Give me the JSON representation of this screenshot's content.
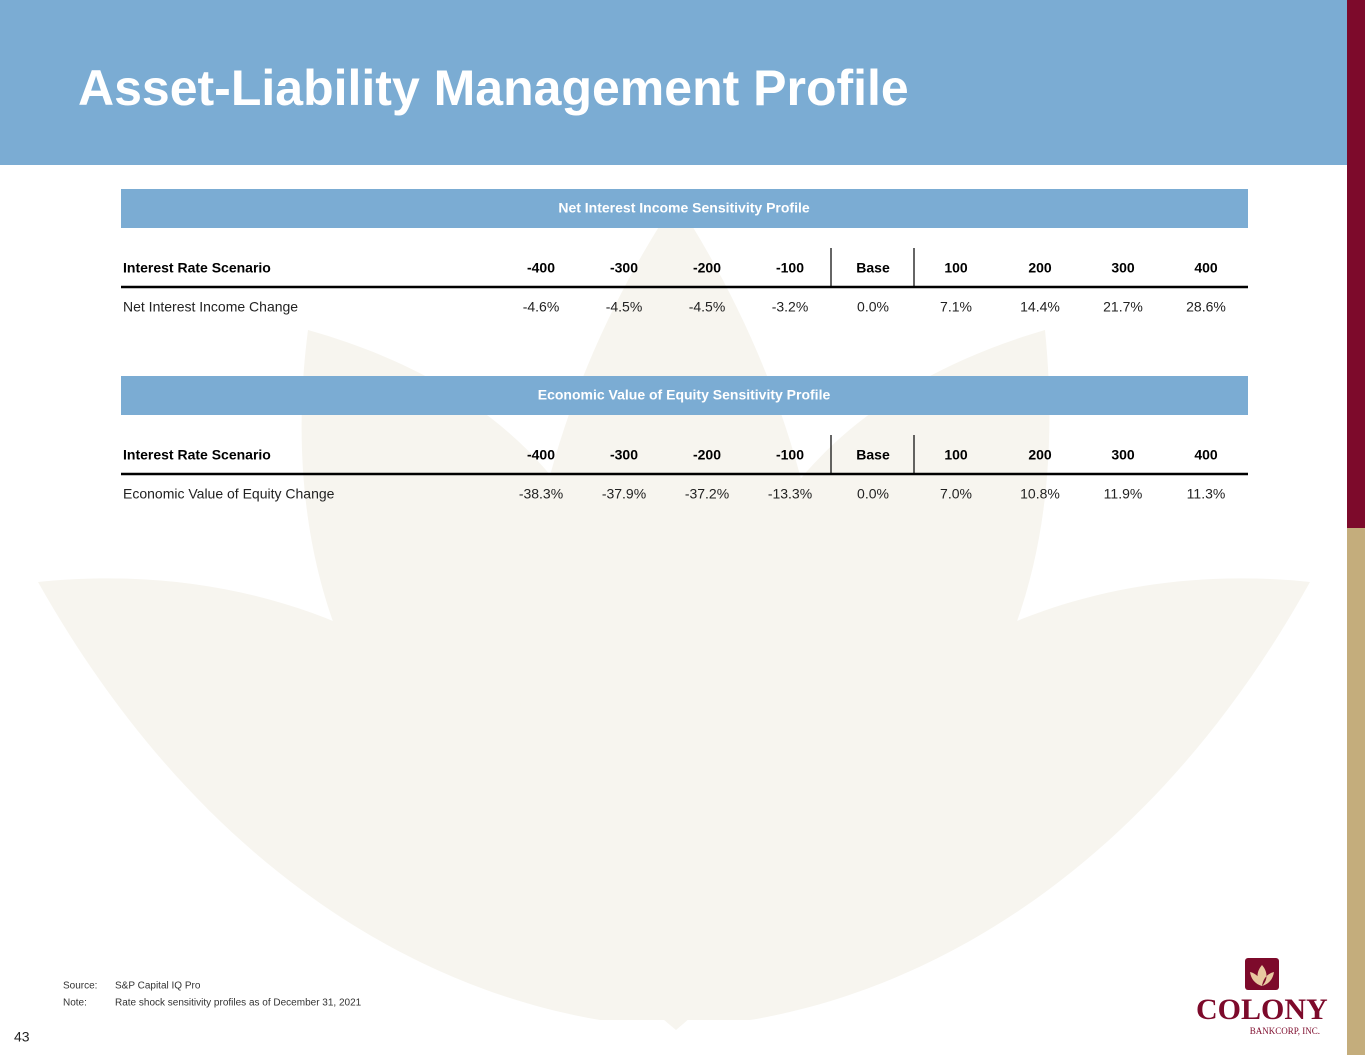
{
  "header": {
    "title": "Asset-Liability Management Profile"
  },
  "tables": [
    {
      "title": "Net Interest Income Sensitivity Profile",
      "columns": [
        "Interest Rate Scenario",
        "-400",
        "-300",
        "-200",
        "-100",
        "Base",
        "100",
        "200",
        "300",
        "400"
      ],
      "rows": [
        [
          "Net Interest Income Change",
          "-4.6%",
          "-4.5%",
          "-4.5%",
          "-3.2%",
          "0.0%",
          "7.1%",
          "14.4%",
          "21.7%",
          "28.6%"
        ]
      ]
    },
    {
      "title": "Economic Value of Equity Sensitivity Profile",
      "columns": [
        "Interest Rate Scenario",
        "-400",
        "-300",
        "-200",
        "-100",
        "Base",
        "100",
        "200",
        "300",
        "400"
      ],
      "rows": [
        [
          "Economic Value of Equity Change",
          "-38.3%",
          "-37.9%",
          "-37.2%",
          "-13.3%",
          "0.0%",
          "7.0%",
          "10.8%",
          "11.9%",
          "11.3%"
        ]
      ]
    }
  ],
  "footer": {
    "source_label": "Source:",
    "source": "S&P Capital IQ Pro",
    "note_label": "Note:",
    "note": "Rate shock sensitivity profiles as of December 31, 2021"
  },
  "page_number": "43",
  "logo": {
    "name": "COLONY",
    "sub": "BANKCORP, INC."
  }
}
